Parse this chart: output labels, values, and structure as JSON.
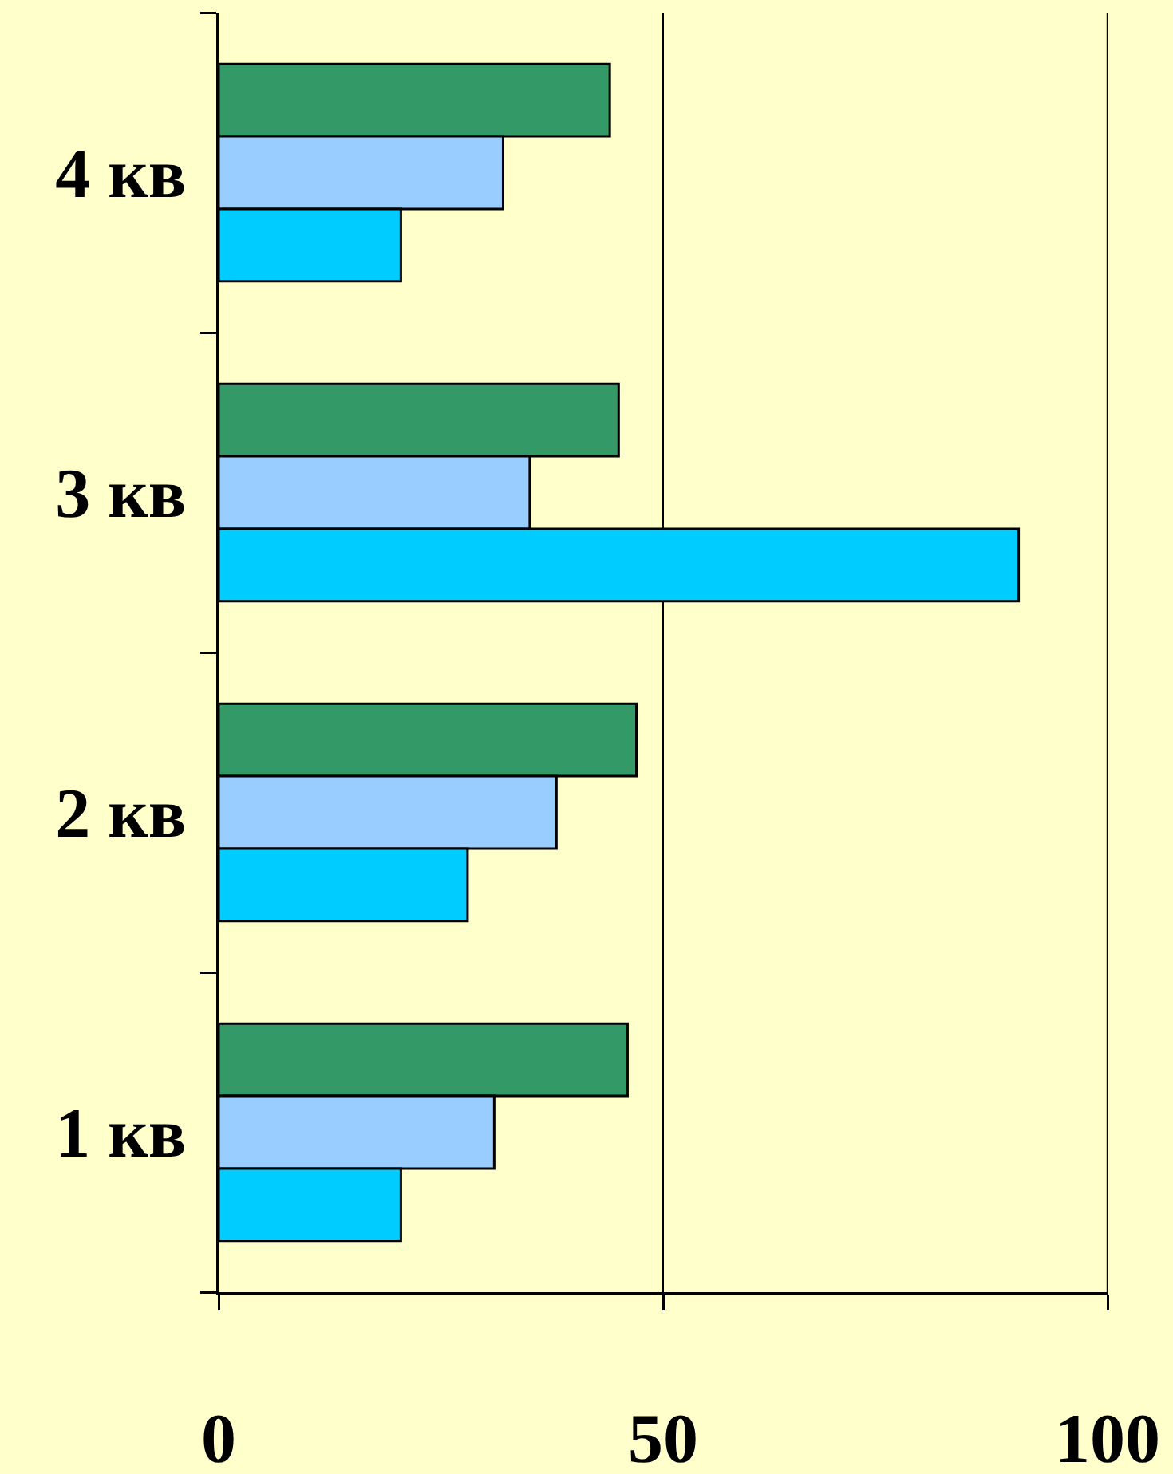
{
  "chart_data": {
    "type": "bar",
    "orientation": "horizontal",
    "categories": [
      "4 кв",
      "3 кв",
      "2 кв",
      "1 кв"
    ],
    "series": [
      {
        "color": "#339966",
        "values": [
          44,
          45,
          47,
          46
        ]
      },
      {
        "color": "#99ccff",
        "values": [
          32,
          35,
          38,
          31
        ]
      },
      {
        "color": "#00ccff",
        "values": [
          20.5,
          90,
          28,
          20.5
        ]
      }
    ],
    "xlim": [
      0,
      100
    ],
    "xticks": [
      0,
      50,
      100
    ],
    "grid": "x"
  }
}
